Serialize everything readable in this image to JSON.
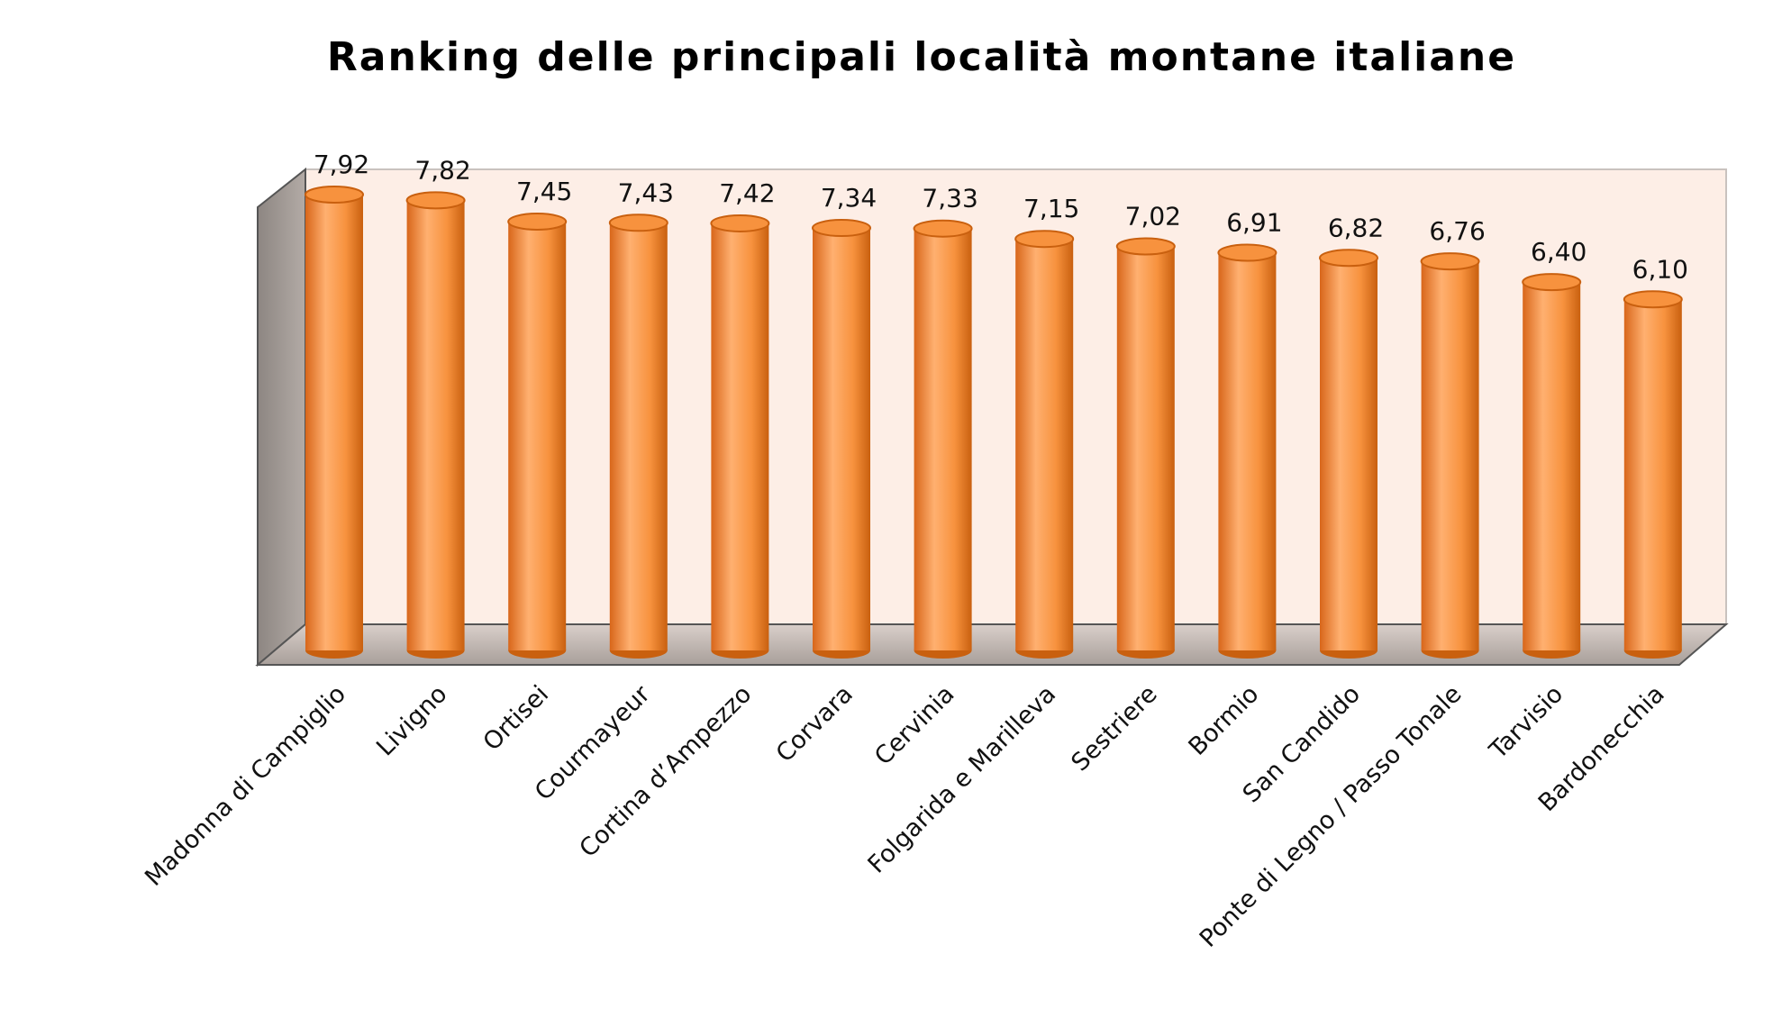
{
  "chart_data": {
    "type": "bar",
    "title": "Ranking delle principali località montane italiane",
    "categories": [
      "Madonna di Campiglio",
      "Livigno",
      "Ortisei",
      "Courmayeur",
      "Cortina d’Ampezzo",
      "Corvara",
      "Cervinia",
      "Folgarida e Marilleva",
      "Sestriere",
      "Bormio",
      "San Candido",
      "Ponte di Legno / Passo Tonale",
      "Tarvisio",
      "Bardonecchia"
    ],
    "values": [
      7.92,
      7.82,
      7.45,
      7.43,
      7.42,
      7.34,
      7.33,
      7.15,
      7.02,
      6.91,
      6.82,
      6.76,
      6.4,
      6.1
    ],
    "value_labels": [
      "7,92",
      "7,82",
      "7,45",
      "7,43",
      "7,42",
      "7,34",
      "7,33",
      "7,15",
      "7,02",
      "6,91",
      "6,82",
      "6,76",
      "6,40",
      "6,10"
    ],
    "color": "#f7923e"
  }
}
